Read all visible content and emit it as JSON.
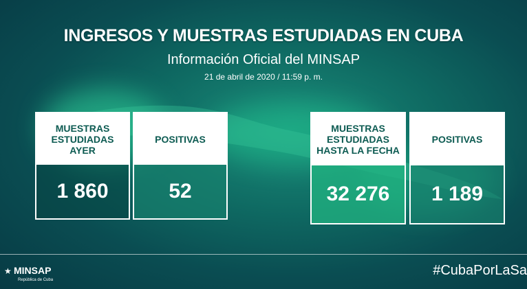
{
  "header": {
    "title": "INGRESOS Y MUESTRAS ESTUDIADAS EN CUBA",
    "subtitle": "Información Oficial del MINSAP",
    "date": "21 de abril de 2020 / 11:59 p. m."
  },
  "cards": [
    {
      "label": "MUESTRAS ESTUDIADAS AYER",
      "value": "1 860"
    },
    {
      "label": "POSITIVAS",
      "value": "52"
    },
    {
      "label": "MUESTRAS ESTUDIADAS HASTA LA FECHA",
      "value": "32 276"
    },
    {
      "label": "POSITIVAS",
      "value": "1 189"
    }
  ],
  "footer": {
    "logo_name": "MINSAP",
    "logo_sub": "República de Cuba",
    "hashtag": "#CubaPorLaSa"
  },
  "colors": {
    "card_label_text": "#0d5b52",
    "accent_green": "#22b482"
  },
  "icons": [
    "star-icon",
    "cuba-map-illustration"
  ]
}
